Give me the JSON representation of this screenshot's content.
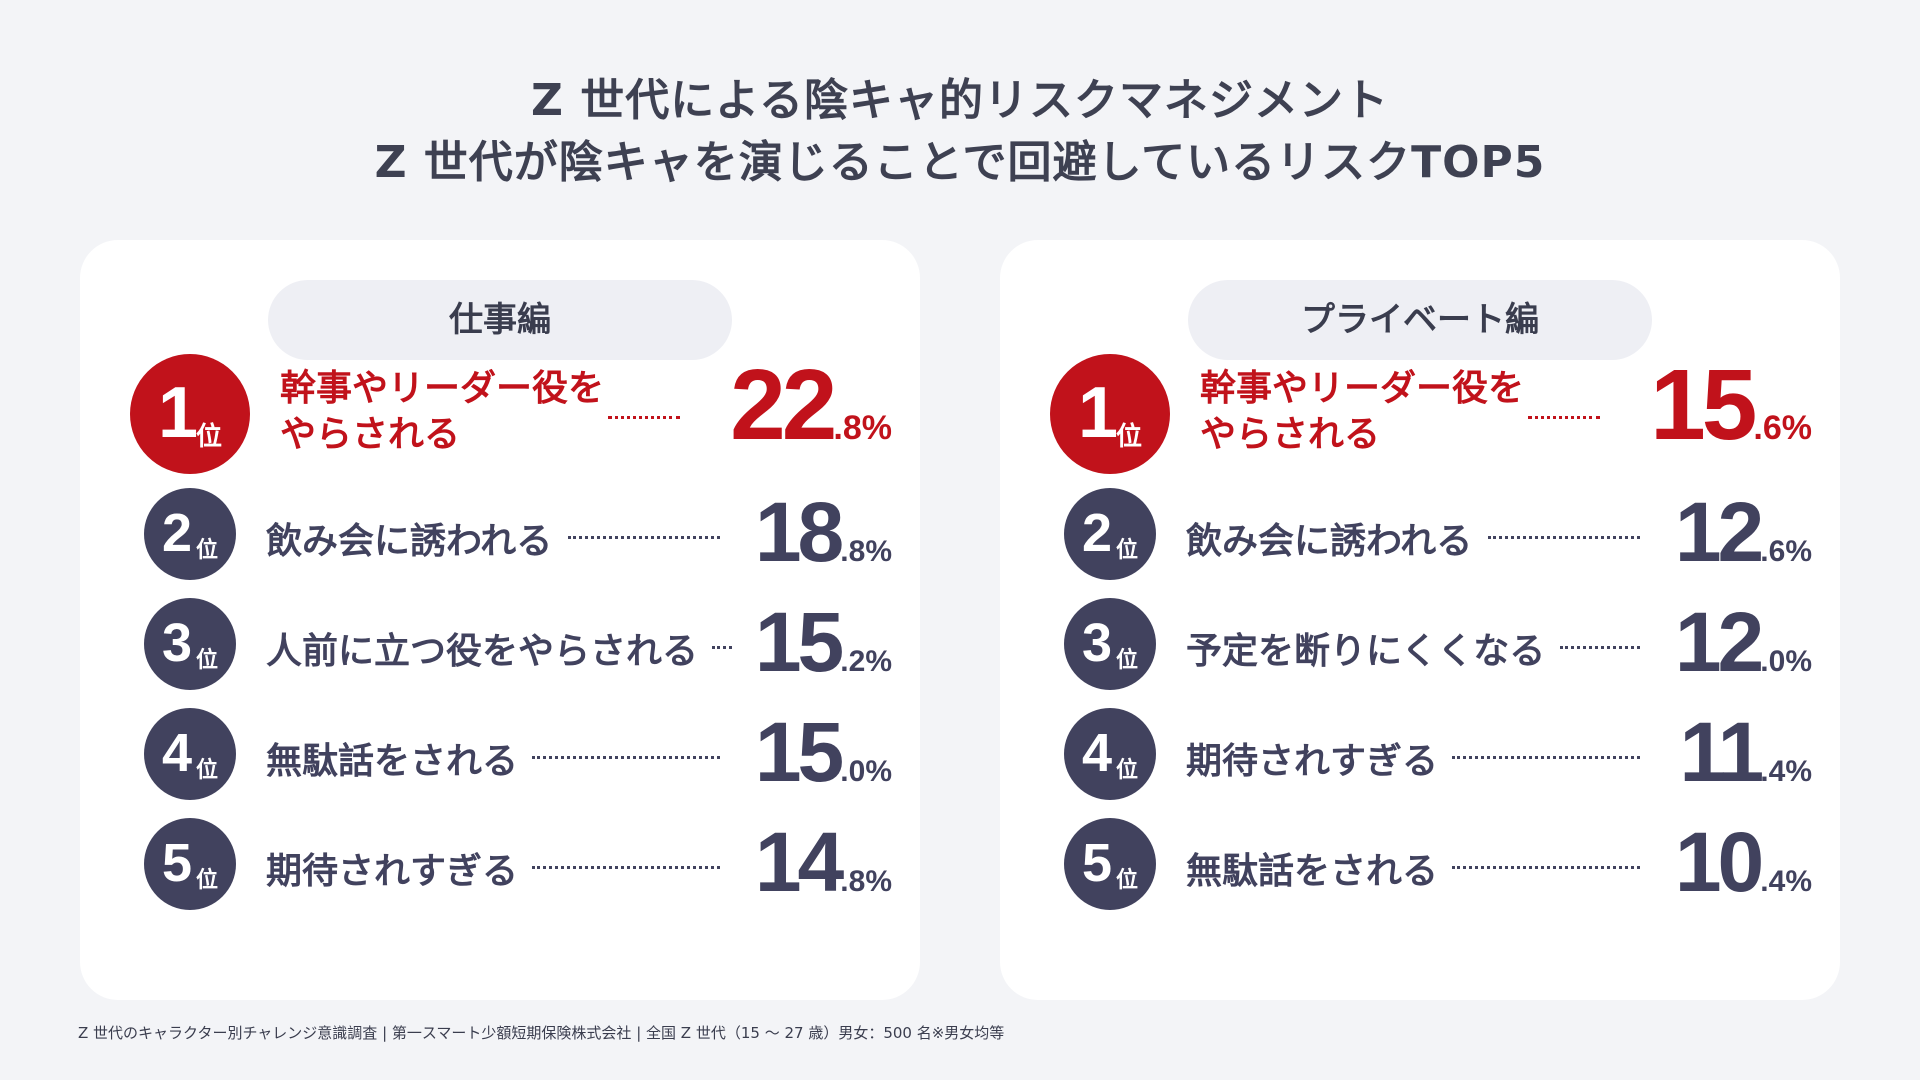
{
  "title": {
    "line1": "Z 世代による陰キャ的リスクマネジメント",
    "line2": "Z 世代が陰キャを演じることで回避しているリスクTOP5"
  },
  "rank_suffix": "位",
  "percent_suffix": "%",
  "colors": {
    "background": "#f3f4f7",
    "panel": "#ffffff",
    "header_pill": "#eeeff4",
    "navy": "#41425e",
    "red": "#c1121b"
  },
  "chart_data": [
    {
      "type": "table",
      "title": "仕事編",
      "rows": [
        {
          "rank": "1",
          "label": "幹事やリーダー役をやらされる",
          "value_int": "22",
          "value_dec": ".8",
          "value": 22.8
        },
        {
          "rank": "2",
          "label": "飲み会に誘われる",
          "value_int": "18",
          "value_dec": ".8",
          "value": 18.8
        },
        {
          "rank": "3",
          "label": "人前に立つ役をやらされる",
          "value_int": "15",
          "value_dec": ".2",
          "value": 15.2
        },
        {
          "rank": "4",
          "label": "無駄話をされる",
          "value_int": "15",
          "value_dec": ".0",
          "value": 15.0
        },
        {
          "rank": "5",
          "label": "期待されすぎる",
          "value_int": "14",
          "value_dec": ".8",
          "value": 14.8
        }
      ]
    },
    {
      "type": "table",
      "title": "プライベート編",
      "rows": [
        {
          "rank": "1",
          "label": "幹事やリーダー役をやらされる",
          "value_int": "15",
          "value_dec": ".6",
          "value": 15.6
        },
        {
          "rank": "2",
          "label": "飲み会に誘われる",
          "value_int": "12",
          "value_dec": ".6",
          "value": 12.6
        },
        {
          "rank": "3",
          "label": "予定を断りにくくなる",
          "value_int": "12",
          "value_dec": ".0",
          "value": 12.0
        },
        {
          "rank": "4",
          "label": "期待されすぎる",
          "value_int": "11",
          "value_dec": ".4",
          "value": 11.4
        },
        {
          "rank": "5",
          "label": "無駄話をされる",
          "value_int": "10",
          "value_dec": ".4",
          "value": 10.4
        }
      ]
    }
  ],
  "footer": "Z 世代のキャラクター別チャレンジ意識調査 | 第一スマート少額短期保険株式会社 | 全国 Z 世代（15 ～ 27 歳）男女：500 名※男女均等"
}
